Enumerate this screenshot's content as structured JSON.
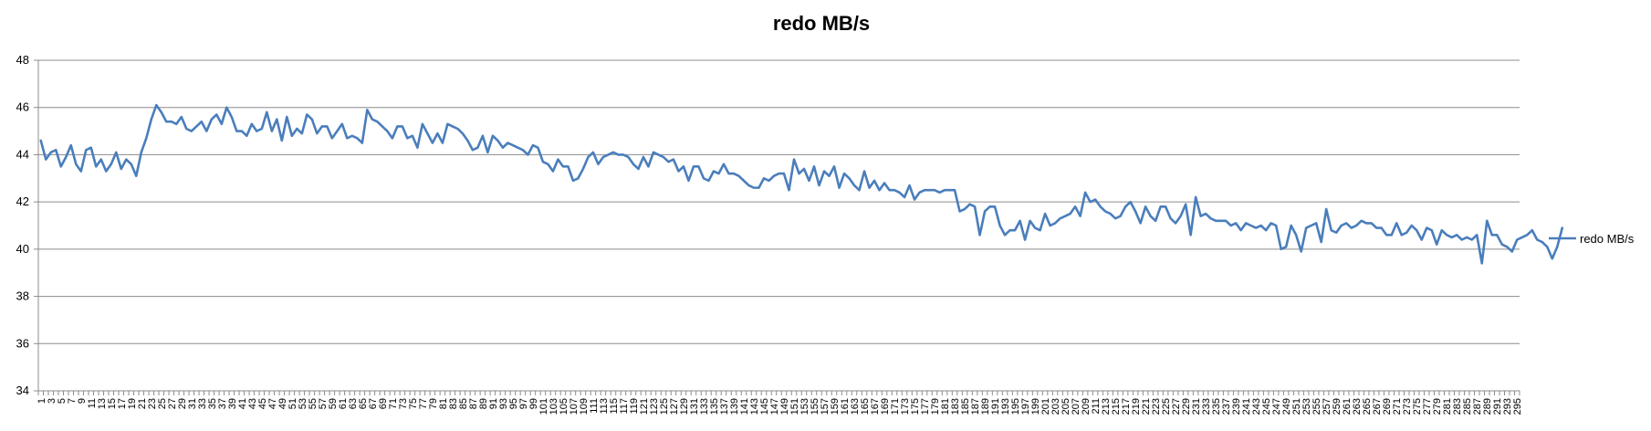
{
  "chart_data": {
    "type": "line",
    "title": "redo MB/s",
    "xlabel": "",
    "ylabel": "",
    "ylim": [
      34,
      48
    ],
    "yticks": [
      34,
      36,
      38,
      40,
      42,
      44,
      46,
      48
    ],
    "grid": true,
    "legend": "right",
    "colors": {
      "series": "#4a7ebb",
      "grid": "#8c8c8c"
    },
    "xtick_labels": [
      "1",
      "5",
      "9",
      "13",
      "17",
      "21",
      "25",
      "29",
      "33",
      "37",
      "41",
      "45",
      "49",
      "53",
      "57",
      "61",
      "65",
      "69",
      "73",
      "77",
      "81",
      "85",
      "89",
      "93",
      "97",
      "101",
      "105",
      "109",
      "113",
      "117",
      "121",
      "125",
      "129",
      "133",
      "137",
      "141",
      "145",
      "149",
      "153",
      "157",
      "161",
      "165",
      "169",
      "173",
      "177",
      "181",
      "185",
      "189",
      "193",
      "197",
      "201",
      "205",
      "209",
      "213",
      "217",
      "221",
      "225",
      "229",
      "233",
      "237",
      "241",
      "245",
      "249",
      "253",
      "257",
      "261",
      "265",
      "269",
      "273",
      "277",
      "281",
      "285",
      "289",
      "293"
    ],
    "xtick_labels_minor": [
      "3",
      "7",
      "11",
      "15",
      "19",
      "23",
      "27",
      "31",
      "35",
      "39",
      "43",
      "47",
      "51",
      "55",
      "59",
      "63",
      "67",
      "71",
      "75",
      "79",
      "83",
      "87",
      "91",
      "95",
      "99",
      "103",
      "107",
      "111",
      "115",
      "119",
      "123",
      "127",
      "131",
      "135",
      "139",
      "143",
      "147",
      "151",
      "155",
      "159",
      "163",
      "167",
      "171",
      "175",
      "179",
      "183",
      "187",
      "191",
      "195",
      "199",
      "203",
      "207",
      "211",
      "215",
      "219",
      "223",
      "227",
      "231",
      "235",
      "239",
      "243",
      "247",
      "251",
      "255",
      "259",
      "263",
      "267",
      "271",
      "275",
      "279",
      "283",
      "287",
      "291",
      "295"
    ],
    "x_count": 295,
    "series": [
      {
        "name": "redo MB/s",
        "values": [
          44.6,
          43.8,
          44.1,
          44.2,
          43.5,
          43.9,
          44.4,
          43.6,
          43.3,
          44.2,
          44.3,
          43.5,
          43.8,
          43.3,
          43.6,
          44.1,
          43.4,
          43.8,
          43.6,
          43.1,
          44.1,
          44.7,
          45.5,
          46.1,
          45.8,
          45.4,
          45.4,
          45.3,
          45.6,
          45.1,
          45.0,
          45.2,
          45.4,
          45.0,
          45.5,
          45.7,
          45.3,
          46.0,
          45.6,
          45.0,
          45.0,
          44.8,
          45.3,
          45.0,
          45.1,
          45.8,
          45.0,
          45.5,
          44.6,
          45.6,
          44.8,
          45.1,
          44.9,
          45.7,
          45.5,
          44.9,
          45.2,
          45.2,
          44.7,
          45.0,
          45.3,
          44.7,
          44.8,
          44.7,
          44.5,
          45.9,
          45.5,
          45.4,
          45.2,
          45.0,
          44.7,
          45.2,
          45.2,
          44.7,
          44.8,
          44.3,
          45.3,
          44.9,
          44.5,
          44.9,
          44.5,
          45.3,
          45.2,
          45.1,
          44.9,
          44.6,
          44.2,
          44.3,
          44.8,
          44.1,
          44.8,
          44.6,
          44.3,
          44.5,
          44.4,
          44.3,
          44.2,
          44.0,
          44.4,
          44.3,
          43.7,
          43.6,
          43.3,
          43.8,
          43.5,
          43.5,
          42.9,
          43.0,
          43.4,
          43.9,
          44.1,
          43.6,
          43.9,
          44.0,
          44.1,
          44.0,
          44.0,
          43.9,
          43.6,
          43.4,
          43.9,
          43.5,
          44.1,
          44.0,
          43.9,
          43.7,
          43.8,
          43.3,
          43.5,
          42.9,
          43.5,
          43.5,
          43.0,
          42.9,
          43.3,
          43.2,
          43.6,
          43.2,
          43.2,
          43.1,
          42.9,
          42.7,
          42.6,
          42.6,
          43.0,
          42.9,
          43.1,
          43.2,
          43.2,
          42.5,
          43.8,
          43.2,
          43.4,
          42.9,
          43.5,
          42.7,
          43.3,
          43.1,
          43.5,
          42.6,
          43.2,
          43.0,
          42.7,
          42.5,
          43.3,
          42.6,
          42.9,
          42.5,
          42.8,
          42.5,
          42.5,
          42.4,
          42.2,
          42.7,
          42.1,
          42.4,
          42.5,
          42.5,
          42.5,
          42.4,
          42.5,
          42.5,
          42.5,
          41.6,
          41.7,
          41.9,
          41.8,
          40.6,
          41.6,
          41.8,
          41.8,
          41.0,
          40.6,
          40.8,
          40.8,
          41.2,
          40.4,
          41.2,
          40.9,
          40.8,
          41.5,
          41.0,
          41.1,
          41.3,
          41.4,
          41.5,
          41.8,
          41.4,
          42.4,
          42.0,
          42.1,
          41.8,
          41.6,
          41.5,
          41.3,
          41.4,
          41.8,
          42.0,
          41.6,
          41.1,
          41.8,
          41.4,
          41.2,
          41.8,
          41.8,
          41.3,
          41.1,
          41.4,
          41.9,
          40.6,
          42.2,
          41.4,
          41.5,
          41.3,
          41.2,
          41.2,
          41.2,
          41.0,
          41.1,
          40.8,
          41.1,
          41.0,
          40.9,
          41.0,
          40.8,
          41.1,
          41.0,
          40.0,
          40.1,
          41.0,
          40.6,
          39.9,
          40.9,
          41.0,
          41.1,
          40.3,
          41.7,
          40.8,
          40.7,
          41.0,
          41.1,
          40.9,
          41.0,
          41.2,
          41.1,
          41.1,
          40.9,
          40.9,
          40.6,
          40.6,
          41.1,
          40.6,
          40.7,
          41.0,
          40.8,
          40.4,
          40.9,
          40.8,
          40.2,
          40.8,
          40.6,
          40.5,
          40.6,
          40.4,
          40.5,
          40.4,
          40.6,
          39.4,
          41.2,
          40.6,
          40.6,
          40.2,
          40.1,
          39.9,
          40.4,
          40.5,
          40.6,
          40.8,
          40.4,
          40.3,
          40.1,
          39.6,
          40.1,
          40.9
        ]
      }
    ]
  }
}
